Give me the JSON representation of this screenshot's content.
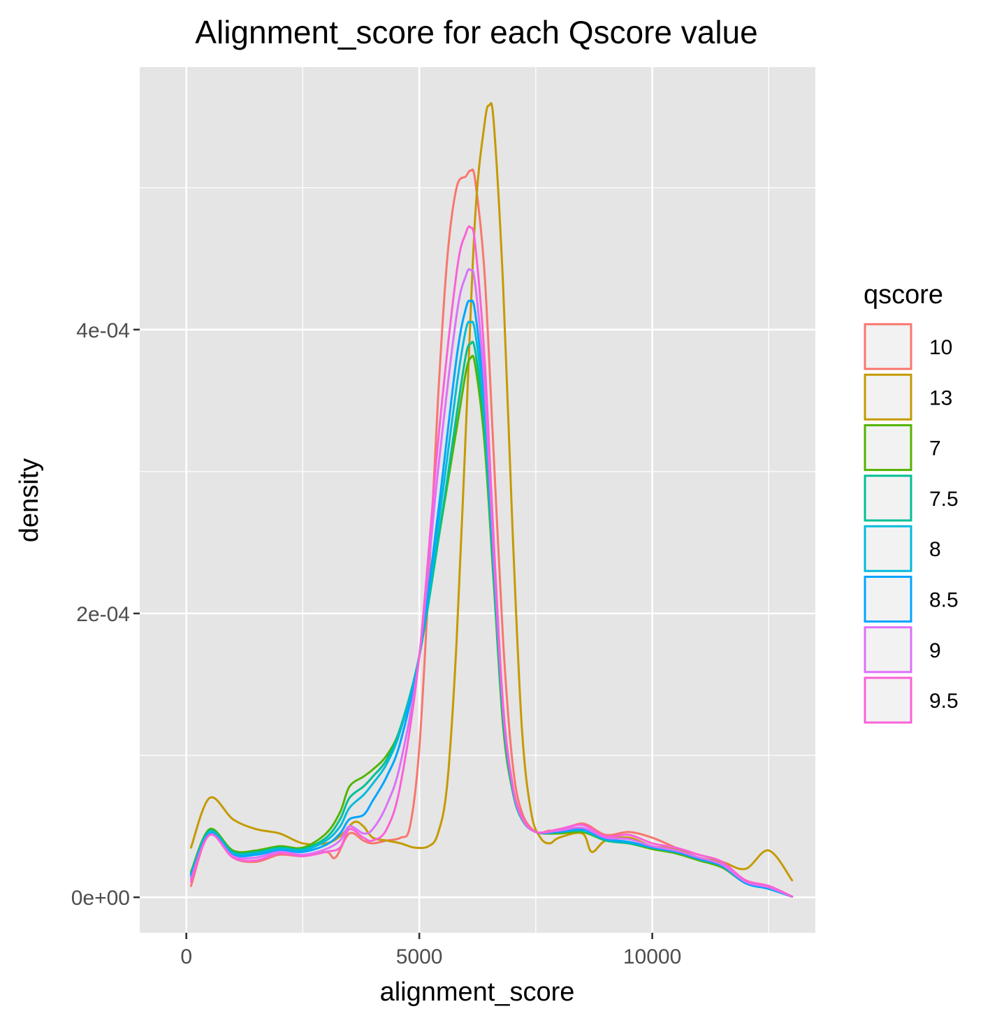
{
  "chart_data": {
    "type": "line",
    "title": "Alignment_score for each Qscore value",
    "xlabel": "alignment_score",
    "ylabel": "density",
    "xlim": [
      -1000,
      13500
    ],
    "ylim": [
      -2.5e-05,
      0.000585
    ],
    "x_ticks": [
      0,
      5000,
      10000
    ],
    "x_tick_labels": [
      "0",
      "5000",
      "10000"
    ],
    "y_ticks": [
      0,
      0.0002,
      0.0004
    ],
    "y_tick_labels": [
      "0e+00",
      "2e-04",
      "4e-04"
    ],
    "grid": true,
    "legend": {
      "title": "qscore",
      "position": "right"
    },
    "colors": {
      "panel_bg": "#e5e5e5",
      "grid": "#ffffff",
      "tick_text": "#4d4d4d"
    },
    "series": [
      {
        "name": "10",
        "color": "#F8766D",
        "x": [
          100,
          500,
          1000,
          1500,
          2000,
          2500,
          3000,
          3200,
          3500,
          3800,
          4000,
          4300,
          4600,
          4800,
          5000,
          5200,
          5400,
          5600,
          5800,
          6000,
          6100,
          6200,
          6400,
          6600,
          6800,
          7000,
          7200,
          7500,
          7800,
          8000,
          8500,
          9000,
          9500,
          10000,
          10500,
          11000,
          11500,
          12000,
          12500,
          13000
        ],
        "y": [
          8e-06,
          4.5e-05,
          2.8e-05,
          2.5e-05,
          3e-05,
          2.9e-05,
          3.2e-05,
          2.8e-05,
          4.5e-05,
          4e-05,
          3.8e-05,
          4e-05,
          4.2e-05,
          5e-05,
          0.000105,
          0.00022,
          0.00035,
          0.00045,
          0.0005,
          0.000508,
          0.000512,
          0.000505,
          0.00044,
          0.00031,
          0.00018,
          9.5e-05,
          6e-05,
          4.6e-05,
          4.7e-05,
          4.6e-05,
          5.2e-05,
          4.4e-05,
          4.6e-05,
          4.2e-05,
          3.5e-05,
          2.8e-05,
          2.4e-05,
          1.2e-05,
          8e-06,
          5e-07
        ]
      },
      {
        "name": "13",
        "color": "#C49A00",
        "x": [
          100,
          500,
          1000,
          1500,
          2000,
          2500,
          3000,
          3300,
          3600,
          3800,
          4000,
          4300,
          4600,
          4900,
          5200,
          5400,
          5600,
          5800,
          6000,
          6200,
          6400,
          6500,
          6600,
          6800,
          7000,
          7200,
          7400,
          7600,
          7800,
          8000,
          8500,
          8700,
          9000,
          9500,
          10000,
          10500,
          11000,
          11500,
          12000,
          12500,
          13000
        ],
        "y": [
          3.5e-05,
          7e-05,
          5.5e-05,
          4.8e-05,
          4.5e-05,
          3.8e-05,
          3.8e-05,
          4.3e-05,
          5.3e-05,
          5e-05,
          4.2e-05,
          4e-05,
          3.8e-05,
          3.5e-05,
          3.6e-05,
          4.5e-05,
          8e-05,
          0.00018,
          0.00033,
          0.00048,
          0.000545,
          0.000558,
          0.000545,
          0.00043,
          0.00026,
          0.00012,
          6e-05,
          4.2e-05,
          3.8e-05,
          4.2e-05,
          4.5e-05,
          3.2e-05,
          4e-05,
          4.2e-05,
          3.6e-05,
          3.4e-05,
          2.8e-05,
          2.5e-05,
          2e-05,
          3.3e-05,
          1.2e-05
        ]
      },
      {
        "name": "7",
        "color": "#53B400",
        "x": [
          100,
          500,
          1000,
          1500,
          2000,
          2500,
          3000,
          3300,
          3500,
          3800,
          4000,
          4300,
          4600,
          5000,
          5400,
          5800,
          6000,
          6100,
          6200,
          6400,
          6600,
          6800,
          7000,
          7200,
          7500,
          8000,
          8500,
          9000,
          9500,
          10000,
          10500,
          11000,
          11500,
          12000,
          12500,
          13000
        ],
        "y": [
          1.8e-05,
          4.8e-05,
          3.3e-05,
          3.3e-05,
          3.6e-05,
          3.5e-05,
          4.5e-05,
          6e-05,
          7.8e-05,
          8.5e-05,
          9e-05,
          0.0001,
          0.00012,
          0.00017,
          0.00025,
          0.00033,
          0.00037,
          0.00038,
          0.000375,
          0.00032,
          0.00022,
          0.00012,
          7.5e-05,
          5.5e-05,
          4.6e-05,
          4.5e-05,
          4.6e-05,
          4e-05,
          3.8e-05,
          3.4e-05,
          3.1e-05,
          2.6e-05,
          2.1e-05,
          1e-05,
          6e-06,
          5e-07
        ]
      },
      {
        "name": "7.5",
        "color": "#00C094",
        "x": [
          100,
          500,
          1000,
          1500,
          2000,
          2500,
          3000,
          3300,
          3500,
          3800,
          4000,
          4300,
          4600,
          5000,
          5400,
          5800,
          6000,
          6100,
          6200,
          6400,
          6600,
          6800,
          7000,
          7200,
          7500,
          8000,
          8500,
          9000,
          9500,
          10000,
          10500,
          11000,
          11500,
          12000,
          12500,
          13000
        ],
        "y": [
          1.7e-05,
          4.7e-05,
          3.2e-05,
          3.2e-05,
          3.5e-05,
          3.4e-05,
          4.2e-05,
          5.5e-05,
          7e-05,
          7.8e-05,
          8.5e-05,
          9.7e-05,
          0.00012,
          0.00017,
          0.00025,
          0.00034,
          0.000382,
          0.00039,
          0.000385,
          0.00033,
          0.000225,
          0.000125,
          7.6e-05,
          5.5e-05,
          4.6e-05,
          4.6e-05,
          4.7e-05,
          4e-05,
          3.8e-05,
          3.5e-05,
          3.2e-05,
          2.7e-05,
          2.2e-05,
          1e-05,
          6e-06,
          5e-07
        ]
      },
      {
        "name": "8",
        "color": "#00BBDA",
        "x": [
          100,
          500,
          1000,
          1500,
          2000,
          2500,
          3000,
          3300,
          3500,
          3800,
          4000,
          4300,
          4600,
          5000,
          5400,
          5800,
          6000,
          6100,
          6200,
          6400,
          6600,
          6800,
          7000,
          7200,
          7500,
          8000,
          8500,
          9000,
          9500,
          10000,
          10500,
          11000,
          11500,
          12000,
          12500,
          13000
        ],
        "y": [
          1.6e-05,
          4.6e-05,
          3.1e-05,
          3.1e-05,
          3.4e-05,
          3.3e-05,
          4e-05,
          5e-05,
          6.3e-05,
          7.2e-05,
          8e-05,
          9.4e-05,
          0.000118,
          0.00017,
          0.00026,
          0.00036,
          0.0004,
          0.000405,
          0.000398,
          0.00034,
          0.00023,
          0.000128,
          7.7e-05,
          5.6e-05,
          4.6e-05,
          4.6e-05,
          4.7e-05,
          4.1e-05,
          3.9e-05,
          3.5e-05,
          3.2e-05,
          2.7e-05,
          2.2e-05,
          1e-05,
          6e-06,
          5e-07
        ]
      },
      {
        "name": "8.5",
        "color": "#00A5FF",
        "x": [
          100,
          500,
          1000,
          1500,
          2000,
          2500,
          3000,
          3300,
          3500,
          3800,
          4000,
          4300,
          4600,
          5000,
          5400,
          5800,
          6000,
          6100,
          6200,
          6400,
          6600,
          6800,
          7000,
          7200,
          7500,
          8000,
          8500,
          9000,
          9500,
          10000,
          10500,
          11000,
          11500,
          12000,
          12500,
          13000
        ],
        "y": [
          1.5e-05,
          4.5e-05,
          3e-05,
          3e-05,
          3.3e-05,
          3.2e-05,
          3.7e-05,
          4.5e-05,
          5.5e-05,
          5.8e-05,
          6.8e-05,
          8.5e-05,
          0.00011,
          0.00017,
          0.00027,
          0.00038,
          0.000415,
          0.00042,
          0.000412,
          0.00035,
          0.000235,
          0.00013,
          7.8e-05,
          5.6e-05,
          4.6e-05,
          4.6e-05,
          4.8e-05,
          4.1e-05,
          3.9e-05,
          3.5e-05,
          3.2e-05,
          2.7e-05,
          2.2e-05,
          1e-05,
          6e-06,
          5e-07
        ]
      },
      {
        "name": "9",
        "color": "#DC71FA",
        "x": [
          100,
          500,
          1000,
          1500,
          2000,
          2500,
          3000,
          3300,
          3500,
          3800,
          4000,
          4300,
          4600,
          5000,
          5400,
          5800,
          6000,
          6100,
          6200,
          6400,
          6600,
          6800,
          7000,
          7200,
          7500,
          8000,
          8500,
          9000,
          9500,
          10000,
          10500,
          11000,
          11500,
          12000,
          12500,
          13000
        ],
        "y": [
          1.3e-05,
          4.4e-05,
          2.9e-05,
          2.8e-05,
          3.2e-05,
          3e-05,
          3.4e-05,
          4e-05,
          5e-05,
          4.5e-05,
          4.8e-05,
          6.5e-05,
          9.5e-05,
          0.00017,
          0.0003,
          0.00041,
          0.000438,
          0.000442,
          0.000432,
          0.00036,
          0.00024,
          0.000132,
          7.9e-05,
          5.6e-05,
          4.6e-05,
          4.7e-05,
          4.9e-05,
          4.2e-05,
          4.1e-05,
          3.6e-05,
          3.3e-05,
          2.8e-05,
          2.3e-05,
          1.1e-05,
          7e-06,
          5e-07
        ]
      },
      {
        "name": "9.5",
        "color": "#FB61D7",
        "x": [
          100,
          500,
          1000,
          1500,
          2000,
          2500,
          3000,
          3300,
          3500,
          3800,
          4000,
          4300,
          4600,
          5000,
          5400,
          5800,
          6000,
          6100,
          6200,
          6400,
          6600,
          6800,
          7000,
          7200,
          7500,
          8000,
          8500,
          9000,
          9500,
          10000,
          10500,
          11000,
          11500,
          12000,
          12500,
          13000
        ],
        "y": [
          1.1e-05,
          4.4e-05,
          2.8e-05,
          2.6e-05,
          3.1e-05,
          2.9e-05,
          3.2e-05,
          3.5e-05,
          4.8e-05,
          4.2e-05,
          4e-05,
          4.8e-05,
          8e-05,
          0.00017,
          0.00032,
          0.00044,
          0.000468,
          0.000472,
          0.00046,
          0.00038,
          0.00025,
          0.000135,
          8e-05,
          5.7e-05,
          4.6e-05,
          4.8e-05,
          5.1e-05,
          4.3e-05,
          4.4e-05,
          3.8e-05,
          3.5e-05,
          3e-05,
          2.5e-05,
          1.2e-05,
          8e-06,
          5e-07
        ]
      }
    ]
  }
}
